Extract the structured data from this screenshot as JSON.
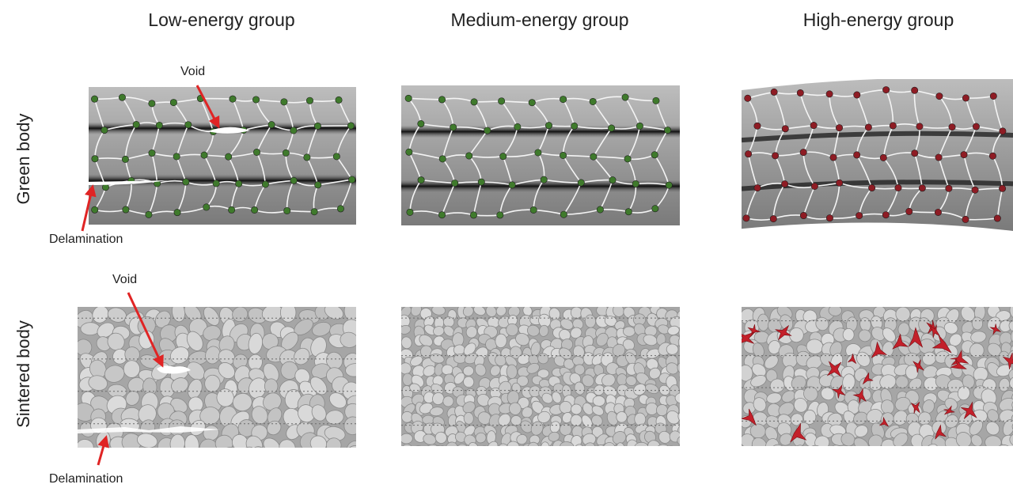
{
  "columns": [
    "Low-energy group",
    "Medium-energy group",
    "High-energy group"
  ],
  "rows": [
    "Green body",
    "Sintered body"
  ],
  "annotations": {
    "void_green": "Void",
    "delam_green": "Delamination",
    "void_sintered": "Void",
    "delam_sintered": "Delamination"
  },
  "colors": {
    "layer_gray": "#8f8f8f",
    "particle_green": "#3f7a2c",
    "particle_red": "#8e1c24",
    "arrow_red": "#e02424",
    "pore_red": "#c3202a",
    "grain_gray": "#c8c8c8"
  }
}
